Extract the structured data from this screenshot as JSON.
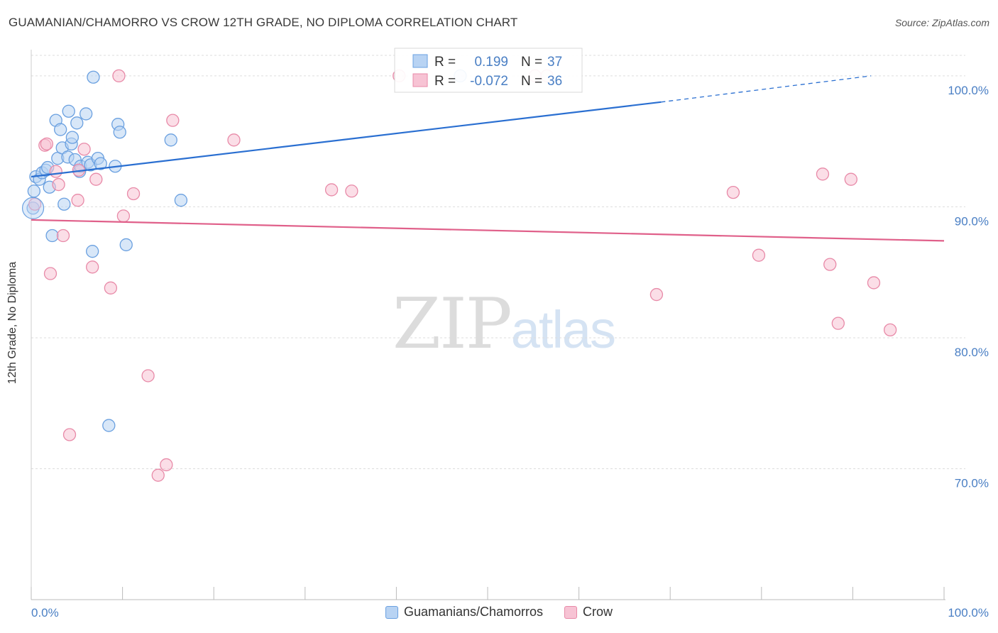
{
  "title": "GUAMANIAN/CHAMORRO VS CROW 12TH GRADE, NO DIPLOMA CORRELATION CHART",
  "source": "Source: ZipAtlas.com",
  "watermark": {
    "zip": "ZIP",
    "atlas": "atlas"
  },
  "colors": {
    "blue": "#6aa0e0",
    "blue_fill": "#b8d3f3",
    "pink": "#e88aa8",
    "pink_fill": "#f7c3d4",
    "blue_line": "#2a6fd1",
    "pink_line": "#e0608a",
    "accent_text": "#4a7fc4"
  },
  "legend": {
    "series1": {
      "r_label": "R =",
      "r_value": "0.199",
      "n_label": "N =",
      "n_value": "37"
    },
    "series2": {
      "r_label": "R =",
      "r_value": "-0.072",
      "n_label": "N =",
      "n_value": "36"
    }
  },
  "bottom_legend": [
    "Guamanians/Chamorros",
    "Crow"
  ],
  "chart_data": {
    "type": "scatter",
    "title": "GUAMANIAN/CHAMORRO VS CROW 12TH GRADE, NO DIPLOMA CORRELATION CHART",
    "xlabel": "",
    "ylabel": "12th Grade, No Diploma",
    "xlim": [
      0,
      100
    ],
    "ylim": [
      60,
      102
    ],
    "x_tick_labels": [
      "0.0%",
      "100.0%"
    ],
    "y_ticks": [
      70,
      80,
      90,
      100
    ],
    "y_tick_labels": [
      "70.0%",
      "80.0%",
      "90.0%",
      "100.0%"
    ],
    "series": [
      {
        "name": "Guamanians/Chamorros",
        "r": 0.199,
        "n": 37,
        "trend": {
          "x0": 0,
          "y0": 92.3,
          "x1": 69,
          "y1": 98.0,
          "dash_to_x": 92,
          "dash_to_y": 100.0
        },
        "points": [
          [
            0.2,
            89.9
          ],
          [
            0.3,
            91.2
          ],
          [
            0.5,
            92.3
          ],
          [
            0.9,
            92.1
          ],
          [
            1.2,
            92.6
          ],
          [
            1.6,
            92.8
          ],
          [
            1.8,
            93.0
          ],
          [
            2.0,
            91.5
          ],
          [
            2.3,
            87.8
          ],
          [
            2.7,
            96.6
          ],
          [
            2.9,
            93.7
          ],
          [
            3.2,
            95.9
          ],
          [
            3.4,
            94.5
          ],
          [
            3.6,
            90.2
          ],
          [
            4.0,
            93.8
          ],
          [
            4.1,
            97.3
          ],
          [
            4.4,
            94.8
          ],
          [
            4.5,
            95.3
          ],
          [
            4.8,
            93.6
          ],
          [
            5.0,
            96.4
          ],
          [
            5.3,
            92.7
          ],
          [
            5.4,
            93.1
          ],
          [
            6.0,
            97.1
          ],
          [
            6.2,
            93.4
          ],
          [
            6.5,
            93.2
          ],
          [
            6.7,
            86.6
          ],
          [
            6.8,
            99.9
          ],
          [
            7.3,
            93.7
          ],
          [
            7.6,
            93.3
          ],
          [
            8.5,
            73.3
          ],
          [
            9.2,
            93.1
          ],
          [
            9.5,
            96.3
          ],
          [
            9.7,
            95.7
          ],
          [
            10.4,
            87.1
          ],
          [
            15.3,
            95.1
          ],
          [
            16.4,
            90.5
          ],
          [
            47.0,
            100.0
          ]
        ]
      },
      {
        "name": "Crow",
        "r": -0.072,
        "n": 36,
        "trend": {
          "x0": 0,
          "y0": 89.0,
          "x1": 100,
          "y1": 87.4
        },
        "points": [
          [
            0.4,
            90.2
          ],
          [
            1.5,
            94.7
          ],
          [
            1.7,
            94.8
          ],
          [
            2.1,
            84.9
          ],
          [
            2.7,
            92.7
          ],
          [
            3.0,
            91.7
          ],
          [
            3.5,
            87.8
          ],
          [
            4.2,
            72.6
          ],
          [
            5.1,
            90.5
          ],
          [
            5.2,
            92.8
          ],
          [
            5.8,
            94.4
          ],
          [
            6.7,
            85.4
          ],
          [
            7.1,
            92.1
          ],
          [
            8.7,
            83.8
          ],
          [
            9.6,
            100.0
          ],
          [
            10.1,
            89.3
          ],
          [
            11.2,
            91.0
          ],
          [
            12.8,
            77.1
          ],
          [
            13.9,
            69.5
          ],
          [
            14.8,
            70.3
          ],
          [
            15.5,
            96.6
          ],
          [
            22.2,
            95.1
          ],
          [
            32.9,
            91.3
          ],
          [
            35.1,
            91.2
          ],
          [
            40.3,
            100.0
          ],
          [
            56.5,
            100.0
          ],
          [
            68.5,
            83.3
          ],
          [
            76.9,
            91.1
          ],
          [
            79.7,
            86.3
          ],
          [
            86.7,
            92.5
          ],
          [
            87.5,
            85.6
          ],
          [
            88.4,
            81.1
          ],
          [
            89.8,
            92.1
          ],
          [
            92.3,
            84.2
          ],
          [
            94.1,
            80.6
          ],
          [
            55.2,
            100.0
          ]
        ]
      }
    ]
  }
}
